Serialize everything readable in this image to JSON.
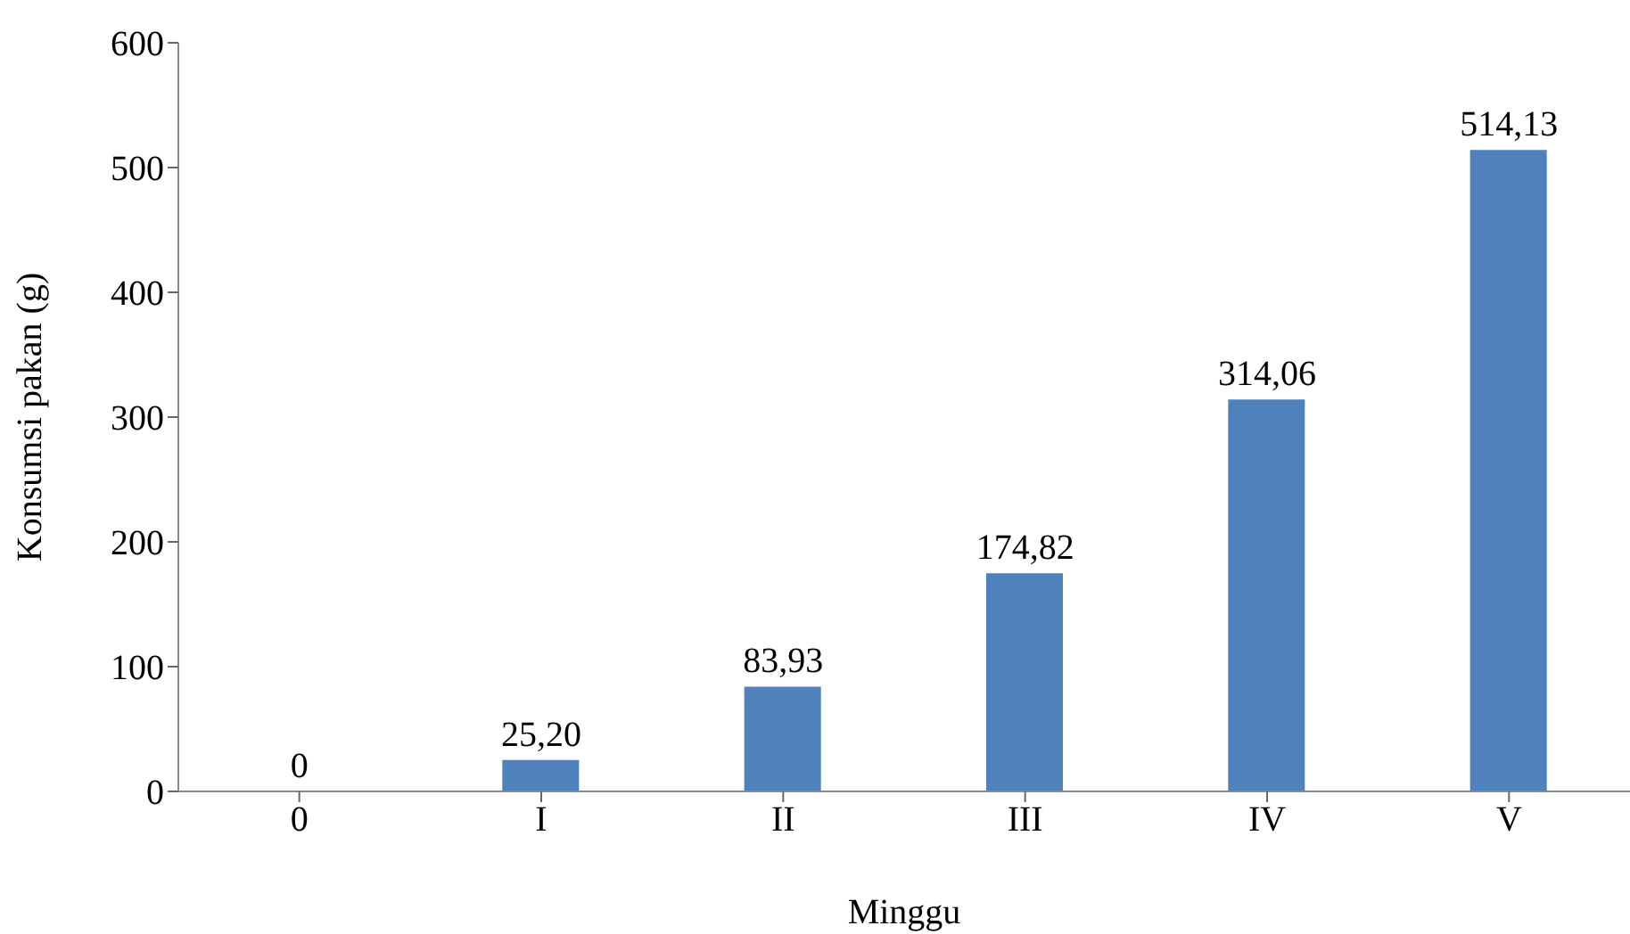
{
  "chart_data": {
    "type": "bar",
    "xlabel": "Minggu",
    "ylabel": "Konsumsi pakan (g)",
    "categories": [
      "0",
      "I",
      "II",
      "III",
      "IV",
      "V"
    ],
    "values": [
      0,
      25.2,
      83.93,
      174.82,
      314.06,
      514.13
    ],
    "value_labels": [
      "0",
      "25,20",
      "83,93",
      "174,82",
      "314,06",
      "514,13"
    ],
    "color": "#4f81bd",
    "ylim": [
      0,
      600
    ],
    "yticks": [
      0,
      100,
      200,
      300,
      400,
      500,
      600
    ],
    "grid": false,
    "legend": false
  }
}
